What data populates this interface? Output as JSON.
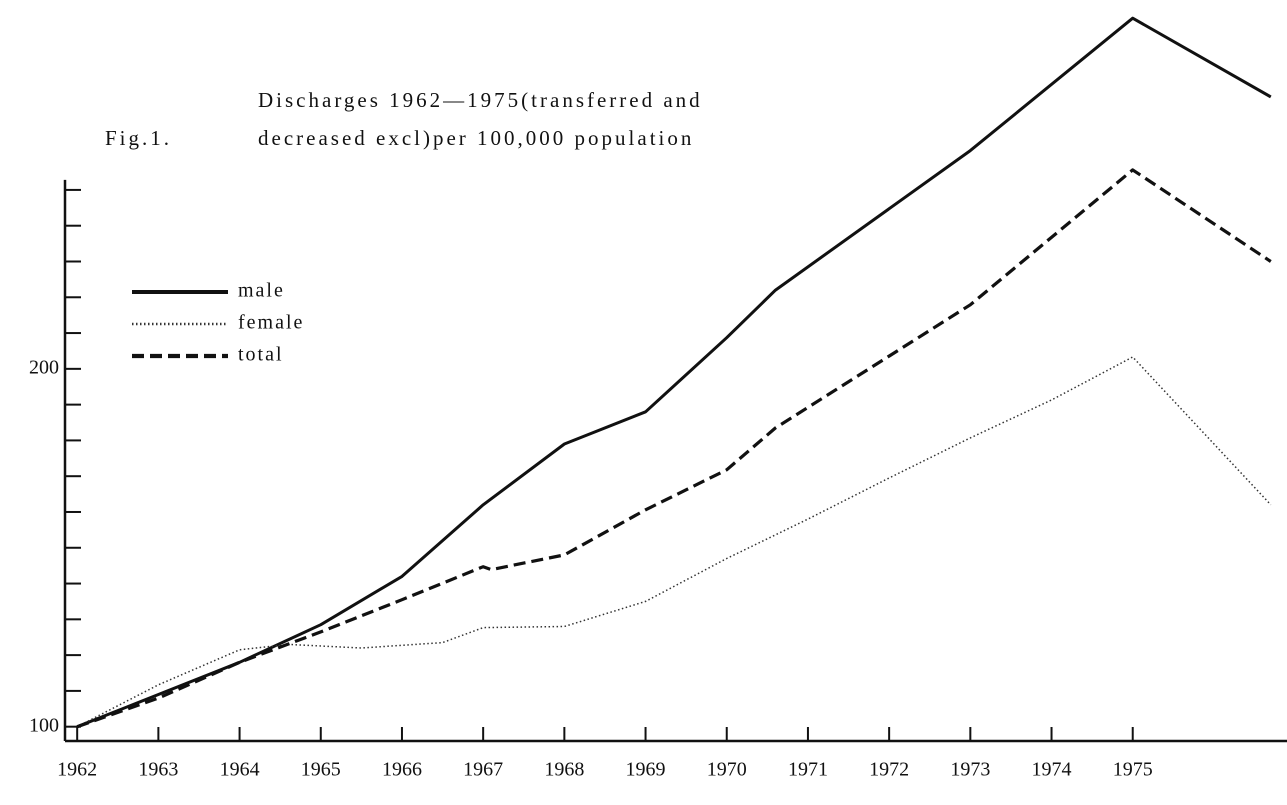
{
  "chart_data": {
    "type": "line",
    "figure_label": "Fig.1.",
    "title_lines": [
      "Discharges 1962—1975(transferred and",
      "decreased excl)per 100,000 population"
    ],
    "xlim": [
      1961.85,
      1976.9
    ],
    "xticks": [
      1962,
      1963,
      1964,
      1965,
      1966,
      1967,
      1968,
      1969,
      1970,
      1971,
      1972,
      1973,
      1974,
      1975
    ],
    "ylim": [
      96,
      300
    ],
    "yticks": [
      100,
      200
    ],
    "yticks_minor": [
      110,
      120,
      130,
      140,
      150,
      160,
      170,
      180,
      190,
      210,
      220,
      230,
      240,
      250
    ],
    "series": [
      {
        "name": "male",
        "color": "#111111",
        "style": "solid",
        "x": [
          1962,
          1963,
          1964,
          1965,
          1966,
          1967,
          1968,
          1969,
          1970,
          1970.6,
          1973,
          1975,
          1976.7
        ],
        "values": [
          100,
          109,
          118,
          128.5,
          142,
          162,
          179,
          188,
          208.7,
          222,
          261,
          298,
          276
        ]
      },
      {
        "name": "female",
        "color": "#333333",
        "style": "dotted",
        "x": [
          1962,
          1963,
          1964,
          1964.6,
          1965.5,
          1966.5,
          1967,
          1968,
          1969,
          1970,
          1971,
          1972,
          1973,
          1974,
          1975,
          1976.7
        ],
        "values": [
          100,
          111.7,
          121.5,
          123,
          122,
          123.5,
          127.7,
          128,
          135,
          147,
          158,
          169.5,
          180.7,
          191.3,
          203.3,
          162
        ]
      },
      {
        "name": "total",
        "color": "#111111",
        "style": "dashed",
        "x": [
          1962,
          1963,
          1964,
          1965,
          1966,
          1967,
          1967.1,
          1968,
          1969,
          1970,
          1970.6,
          1973,
          1975,
          1976.7
        ],
        "values": [
          100,
          108,
          118,
          126.5,
          135.5,
          144.7,
          143.9,
          148,
          160.6,
          171.8,
          183.5,
          217.9,
          255.6,
          230
        ]
      }
    ]
  }
}
